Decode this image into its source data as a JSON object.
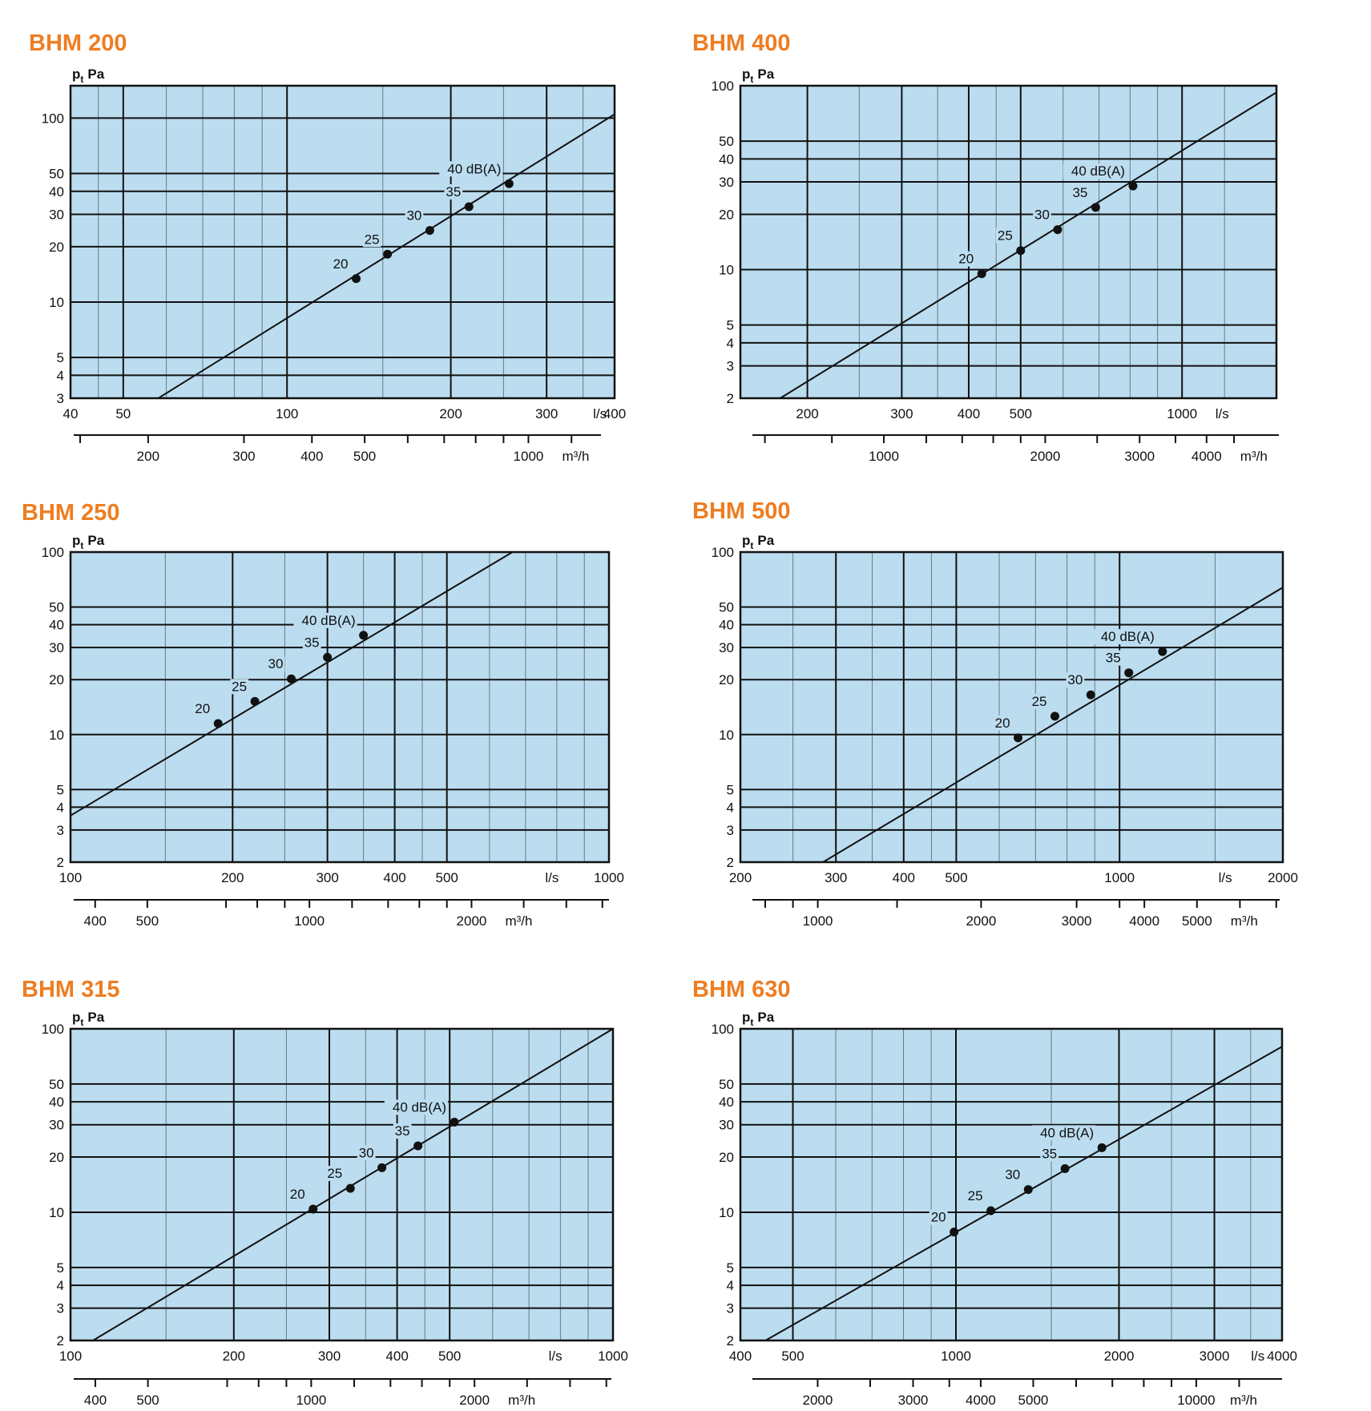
{
  "colors": {
    "title": "#EE7D21",
    "plot_bg": "#BCDDF0",
    "major_grid": "#111111",
    "minor_grid": "#6B7A84",
    "curve": "#111111",
    "point": "#111111"
  },
  "chart_data": [
    {
      "type": "line",
      "title": "BHM 200",
      "ylabel": "p",
      "ylabel_sub": "t",
      "ylabel_unit": "Pa",
      "x_scale": "log",
      "y_scale": "log",
      "xlim": [
        40,
        400
      ],
      "ylim": [
        3,
        150
      ],
      "x_unit": "l/s",
      "x_ticks": [
        {
          "v": 40,
          "label": "40"
        },
        {
          "v": 50,
          "label": "50"
        },
        {
          "v": 100,
          "label": "100"
        },
        {
          "v": 200,
          "label": "200"
        },
        {
          "v": 300,
          "label": "300"
        },
        {
          "v": 400,
          "label": "400"
        }
      ],
      "x_major": [
        50,
        100,
        200,
        300
      ],
      "x_minor": [
        45,
        60,
        70,
        80,
        90,
        150,
        250,
        350
      ],
      "y_ticks": [
        {
          "v": 3,
          "label": "3"
        },
        {
          "v": 4,
          "label": "4"
        },
        {
          "v": 5,
          "label": "5"
        },
        {
          "v": 10,
          "label": "10"
        },
        {
          "v": 20,
          "label": "20"
        },
        {
          "v": 30,
          "label": "30"
        },
        {
          "v": 40,
          "label": "40"
        },
        {
          "v": 50,
          "label": "50"
        },
        {
          "v": 100,
          "label": "100"
        }
      ],
      "y_grid": [
        4,
        5,
        10,
        20,
        30,
        40,
        50,
        100
      ],
      "secondary_axis": {
        "unit": "m³/h",
        "labels": [
          {
            "v": 200,
            "label": "200"
          },
          {
            "v": 300,
            "label": "300"
          },
          {
            "v": 400,
            "label": "400"
          },
          {
            "v": 500,
            "label": "500"
          },
          {
            "v": 1000,
            "label": "1000"
          }
        ],
        "ticks": [
          150,
          200,
          300,
          400,
          500,
          600,
          700,
          800,
          900,
          1000,
          1200,
          1400
        ]
      },
      "curve": [
        [
          58,
          3
        ],
        [
          400,
          105
        ]
      ],
      "series": [
        {
          "x": 134,
          "y": 13.4,
          "label": "20"
        },
        {
          "x": 153,
          "y": 18.2,
          "label": "25"
        },
        {
          "x": 183,
          "y": 24.5,
          "label": "30"
        },
        {
          "x": 216,
          "y": 33,
          "label": "35"
        },
        {
          "x": 256,
          "y": 44,
          "label": "40 dB(A)"
        }
      ]
    },
    {
      "type": "line",
      "title": "BHM 400",
      "ylabel": "p",
      "ylabel_sub": "t",
      "ylabel_unit": "Pa",
      "x_scale": "log",
      "y_scale": "log",
      "xlim": [
        150,
        1500
      ],
      "ylim": [
        2,
        100
      ],
      "x_unit": "l/s",
      "x_ticks": [
        {
          "v": 200,
          "label": "200"
        },
        {
          "v": 300,
          "label": "300"
        },
        {
          "v": 400,
          "label": "400"
        },
        {
          "v": 500,
          "label": "500"
        },
        {
          "v": 1000,
          "label": "1000"
        }
      ],
      "x_major": [
        200,
        300,
        400,
        500,
        1000
      ],
      "x_minor": [
        250,
        350,
        450,
        600,
        700,
        800,
        900,
        1200
      ],
      "y_ticks": [
        {
          "v": 2,
          "label": "2"
        },
        {
          "v": 3,
          "label": "3"
        },
        {
          "v": 4,
          "label": "4"
        },
        {
          "v": 5,
          "label": "5"
        },
        {
          "v": 10,
          "label": "10"
        },
        {
          "v": 20,
          "label": "20"
        },
        {
          "v": 30,
          "label": "30"
        },
        {
          "v": 40,
          "label": "40"
        },
        {
          "v": 50,
          "label": "50"
        },
        {
          "v": 100,
          "label": "100"
        }
      ],
      "y_grid": [
        3,
        4,
        5,
        10,
        20,
        30,
        40,
        50
      ],
      "secondary_axis": {
        "unit": "m³/h",
        "labels": [
          {
            "v": 1000,
            "label": "1000"
          },
          {
            "v": 2000,
            "label": "2000"
          },
          {
            "v": 3000,
            "label": "3000"
          },
          {
            "v": 4000,
            "label": "4000"
          }
        ],
        "ticks": [
          600,
          800,
          1000,
          1200,
          1400,
          1600,
          1800,
          2000,
          2500,
          3000,
          3500,
          4000,
          4500
        ]
      },
      "curve": [
        [
          178,
          2
        ],
        [
          1500,
          92
        ]
      ],
      "series": [
        {
          "x": 423,
          "y": 9.5,
          "label": "20"
        },
        {
          "x": 500,
          "y": 12.7,
          "label": "25"
        },
        {
          "x": 586,
          "y": 16.5,
          "label": "30"
        },
        {
          "x": 690,
          "y": 21.8,
          "label": "35"
        },
        {
          "x": 810,
          "y": 28.5,
          "label": "40 dB(A)"
        }
      ]
    },
    {
      "type": "line",
      "title": "BHM 250",
      "ylabel": "p",
      "ylabel_sub": "t",
      "ylabel_unit": "Pa",
      "x_scale": "log",
      "y_scale": "log",
      "xlim": [
        100,
        1000
      ],
      "ylim": [
        2,
        100
      ],
      "x_unit": "l/s",
      "x_ticks": [
        {
          "v": 100,
          "label": "100"
        },
        {
          "v": 200,
          "label": "200"
        },
        {
          "v": 300,
          "label": "300"
        },
        {
          "v": 400,
          "label": "400"
        },
        {
          "v": 500,
          "label": "500"
        },
        {
          "v": 1000,
          "label": "1000"
        }
      ],
      "x_major": [
        200,
        300,
        400,
        500
      ],
      "x_minor": [
        150,
        250,
        350,
        450,
        600,
        700,
        800,
        900
      ],
      "y_ticks": [
        {
          "v": 2,
          "label": "2"
        },
        {
          "v": 3,
          "label": "3"
        },
        {
          "v": 4,
          "label": "4"
        },
        {
          "v": 5,
          "label": "5"
        },
        {
          "v": 10,
          "label": "10"
        },
        {
          "v": 20,
          "label": "20"
        },
        {
          "v": 30,
          "label": "30"
        },
        {
          "v": 40,
          "label": "40"
        },
        {
          "v": 50,
          "label": "50"
        },
        {
          "v": 100,
          "label": "100"
        }
      ],
      "y_grid": [
        3,
        4,
        5,
        10,
        20,
        30,
        40,
        50
      ],
      "secondary_axis": {
        "unit": "m³/h",
        "labels": [
          {
            "v": 400,
            "label": "400"
          },
          {
            "v": 500,
            "label": "500"
          },
          {
            "v": 1000,
            "label": "1000"
          },
          {
            "v": 2000,
            "label": "2000"
          }
        ],
        "ticks": [
          400,
          500,
          700,
          800,
          900,
          1000,
          1200,
          1400,
          1600,
          1800,
          2000,
          2500,
          3000,
          3500
        ]
      },
      "curve": [
        [
          100,
          3.6
        ],
        [
          662,
          100
        ]
      ],
      "series": [
        {
          "x": 188,
          "y": 11.5,
          "label": "20"
        },
        {
          "x": 220,
          "y": 15.2,
          "label": "25"
        },
        {
          "x": 257,
          "y": 20.2,
          "label": "30"
        },
        {
          "x": 300,
          "y": 26.5,
          "label": "35"
        },
        {
          "x": 350,
          "y": 35,
          "label": "40 dB(A)"
        }
      ]
    },
    {
      "type": "line",
      "title": "BHM 500",
      "ylabel": "p",
      "ylabel_sub": "t",
      "ylabel_unit": "Pa",
      "x_scale": "log",
      "y_scale": "log",
      "xlim": [
        200,
        2000
      ],
      "ylim": [
        2,
        100
      ],
      "x_unit": "l/s",
      "x_ticks": [
        {
          "v": 200,
          "label": "200"
        },
        {
          "v": 300,
          "label": "300"
        },
        {
          "v": 400,
          "label": "400"
        },
        {
          "v": 500,
          "label": "500"
        },
        {
          "v": 1000,
          "label": "1000"
        },
        {
          "v": 2000,
          "label": "2000"
        }
      ],
      "x_major": [
        300,
        400,
        500,
        1000
      ],
      "x_minor": [
        250,
        350,
        450,
        600,
        700,
        800,
        900,
        1500
      ],
      "y_ticks": [
        {
          "v": 2,
          "label": "2"
        },
        {
          "v": 3,
          "label": "3"
        },
        {
          "v": 4,
          "label": "4"
        },
        {
          "v": 5,
          "label": "5"
        },
        {
          "v": 10,
          "label": "10"
        },
        {
          "v": 20,
          "label": "20"
        },
        {
          "v": 30,
          "label": "30"
        },
        {
          "v": 40,
          "label": "40"
        },
        {
          "v": 50,
          "label": "50"
        },
        {
          "v": 100,
          "label": "100"
        }
      ],
      "y_grid": [
        3,
        4,
        5,
        10,
        20,
        30,
        40,
        50
      ],
      "secondary_axis": {
        "unit": "m³/h",
        "labels": [
          {
            "v": 1000,
            "label": "1000"
          },
          {
            "v": 2000,
            "label": "2000"
          },
          {
            "v": 3000,
            "label": "3000"
          },
          {
            "v": 4000,
            "label": "4000"
          },
          {
            "v": 5000,
            "label": "5000"
          }
        ],
        "ticks": [
          800,
          900,
          1000,
          1400,
          2000,
          3000,
          3600,
          4000,
          5000,
          6000,
          7000
        ]
      },
      "curve": [
        [
          284,
          2
        ],
        [
          2000,
          64
        ]
      ],
      "series": [
        {
          "x": 650,
          "y": 9.6,
          "label": "20"
        },
        {
          "x": 760,
          "y": 12.6,
          "label": "25"
        },
        {
          "x": 885,
          "y": 16.5,
          "label": "30"
        },
        {
          "x": 1040,
          "y": 21.8,
          "label": "35"
        },
        {
          "x": 1200,
          "y": 28.5,
          "label": "40 dB(A)"
        }
      ]
    },
    {
      "type": "line",
      "title": "BHM 315",
      "ylabel": "p",
      "ylabel_sub": "t",
      "ylabel_unit": "Pa",
      "x_scale": "log",
      "y_scale": "log",
      "xlim": [
        100,
        1000
      ],
      "ylim": [
        2,
        100
      ],
      "x_unit": "l/s",
      "x_ticks": [
        {
          "v": 100,
          "label": "100"
        },
        {
          "v": 200,
          "label": "200"
        },
        {
          "v": 300,
          "label": "300"
        },
        {
          "v": 400,
          "label": "400"
        },
        {
          "v": 500,
          "label": "500"
        },
        {
          "v": 1000,
          "label": "1000"
        }
      ],
      "x_major": [
        200,
        300,
        400,
        500
      ],
      "x_minor": [
        150,
        250,
        350,
        450,
        600,
        700,
        800,
        900
      ],
      "y_ticks": [
        {
          "v": 2,
          "label": "2"
        },
        {
          "v": 3,
          "label": "3"
        },
        {
          "v": 4,
          "label": "4"
        },
        {
          "v": 5,
          "label": "5"
        },
        {
          "v": 10,
          "label": "10"
        },
        {
          "v": 20,
          "label": "20"
        },
        {
          "v": 30,
          "label": "30"
        },
        {
          "v": 40,
          "label": "40"
        },
        {
          "v": 50,
          "label": "50"
        },
        {
          "v": 100,
          "label": "100"
        }
      ],
      "y_grid": [
        3,
        4,
        5,
        10,
        20,
        30,
        40,
        50
      ],
      "secondary_axis": {
        "unit": "m³/h",
        "labels": [
          {
            "v": 400,
            "label": "400"
          },
          {
            "v": 500,
            "label": "500"
          },
          {
            "v": 1000,
            "label": "1000"
          },
          {
            "v": 2000,
            "label": "2000"
          }
        ],
        "ticks": [
          400,
          500,
          700,
          800,
          900,
          1000,
          1200,
          1400,
          1600,
          1800,
          2000,
          2500,
          3000,
          3500
        ]
      },
      "curve": [
        [
          110,
          2
        ],
        [
          1000,
          100
        ]
      ],
      "series": [
        {
          "x": 280,
          "y": 10.4,
          "label": "20"
        },
        {
          "x": 328,
          "y": 13.5,
          "label": "25"
        },
        {
          "x": 375,
          "y": 17.5,
          "label": "30"
        },
        {
          "x": 437,
          "y": 23,
          "label": "35"
        },
        {
          "x": 510,
          "y": 31,
          "label": "40 dB(A)"
        }
      ]
    },
    {
      "type": "line",
      "title": "BHM 630",
      "ylabel": "p",
      "ylabel_sub": "t",
      "ylabel_unit": "Pa",
      "x_scale": "log",
      "y_scale": "log",
      "xlim": [
        400,
        4000
      ],
      "ylim": [
        2,
        100
      ],
      "x_unit": "l/s",
      "x_ticks": [
        {
          "v": 400,
          "label": "400"
        },
        {
          "v": 500,
          "label": "500"
        },
        {
          "v": 1000,
          "label": "1000"
        },
        {
          "v": 2000,
          "label": "2000"
        },
        {
          "v": 3000,
          "label": "3000"
        },
        {
          "v": 4000,
          "label": "4000"
        }
      ],
      "x_major": [
        500,
        1000,
        2000,
        3000
      ],
      "x_minor": [
        600,
        700,
        800,
        900,
        1500,
        2500,
        3500
      ],
      "y_ticks": [
        {
          "v": 2,
          "label": "2"
        },
        {
          "v": 3,
          "label": "3"
        },
        {
          "v": 4,
          "label": "4"
        },
        {
          "v": 5,
          "label": "5"
        },
        {
          "v": 10,
          "label": "10"
        },
        {
          "v": 20,
          "label": "20"
        },
        {
          "v": 30,
          "label": "30"
        },
        {
          "v": 40,
          "label": "40"
        },
        {
          "v": 50,
          "label": "50"
        },
        {
          "v": 100,
          "label": "100"
        }
      ],
      "y_grid": [
        3,
        4,
        5,
        10,
        20,
        30,
        40,
        50
      ],
      "secondary_axis": {
        "unit": "m³/h",
        "labels": [
          {
            "v": 2000,
            "label": "2000"
          },
          {
            "v": 3000,
            "label": "3000"
          },
          {
            "v": 4000,
            "label": "4000"
          },
          {
            "v": 5000,
            "label": "5000"
          },
          {
            "v": 10000,
            "label": "10000"
          }
        ],
        "ticks": [
          1500,
          2000,
          2500,
          3000,
          3500,
          4000,
          5000,
          6000,
          7000,
          8000,
          9000,
          10000,
          12000
        ]
      },
      "curve": [
        [
          445,
          2
        ],
        [
          4000,
          80
        ]
      ],
      "series": [
        {
          "x": 992,
          "y": 7.8,
          "label": "20"
        },
        {
          "x": 1160,
          "y": 10.2,
          "label": "25"
        },
        {
          "x": 1360,
          "y": 13.3,
          "label": "30"
        },
        {
          "x": 1590,
          "y": 17.3,
          "label": "35"
        },
        {
          "x": 1860,
          "y": 22.5,
          "label": "40 dB(A)"
        }
      ]
    }
  ]
}
